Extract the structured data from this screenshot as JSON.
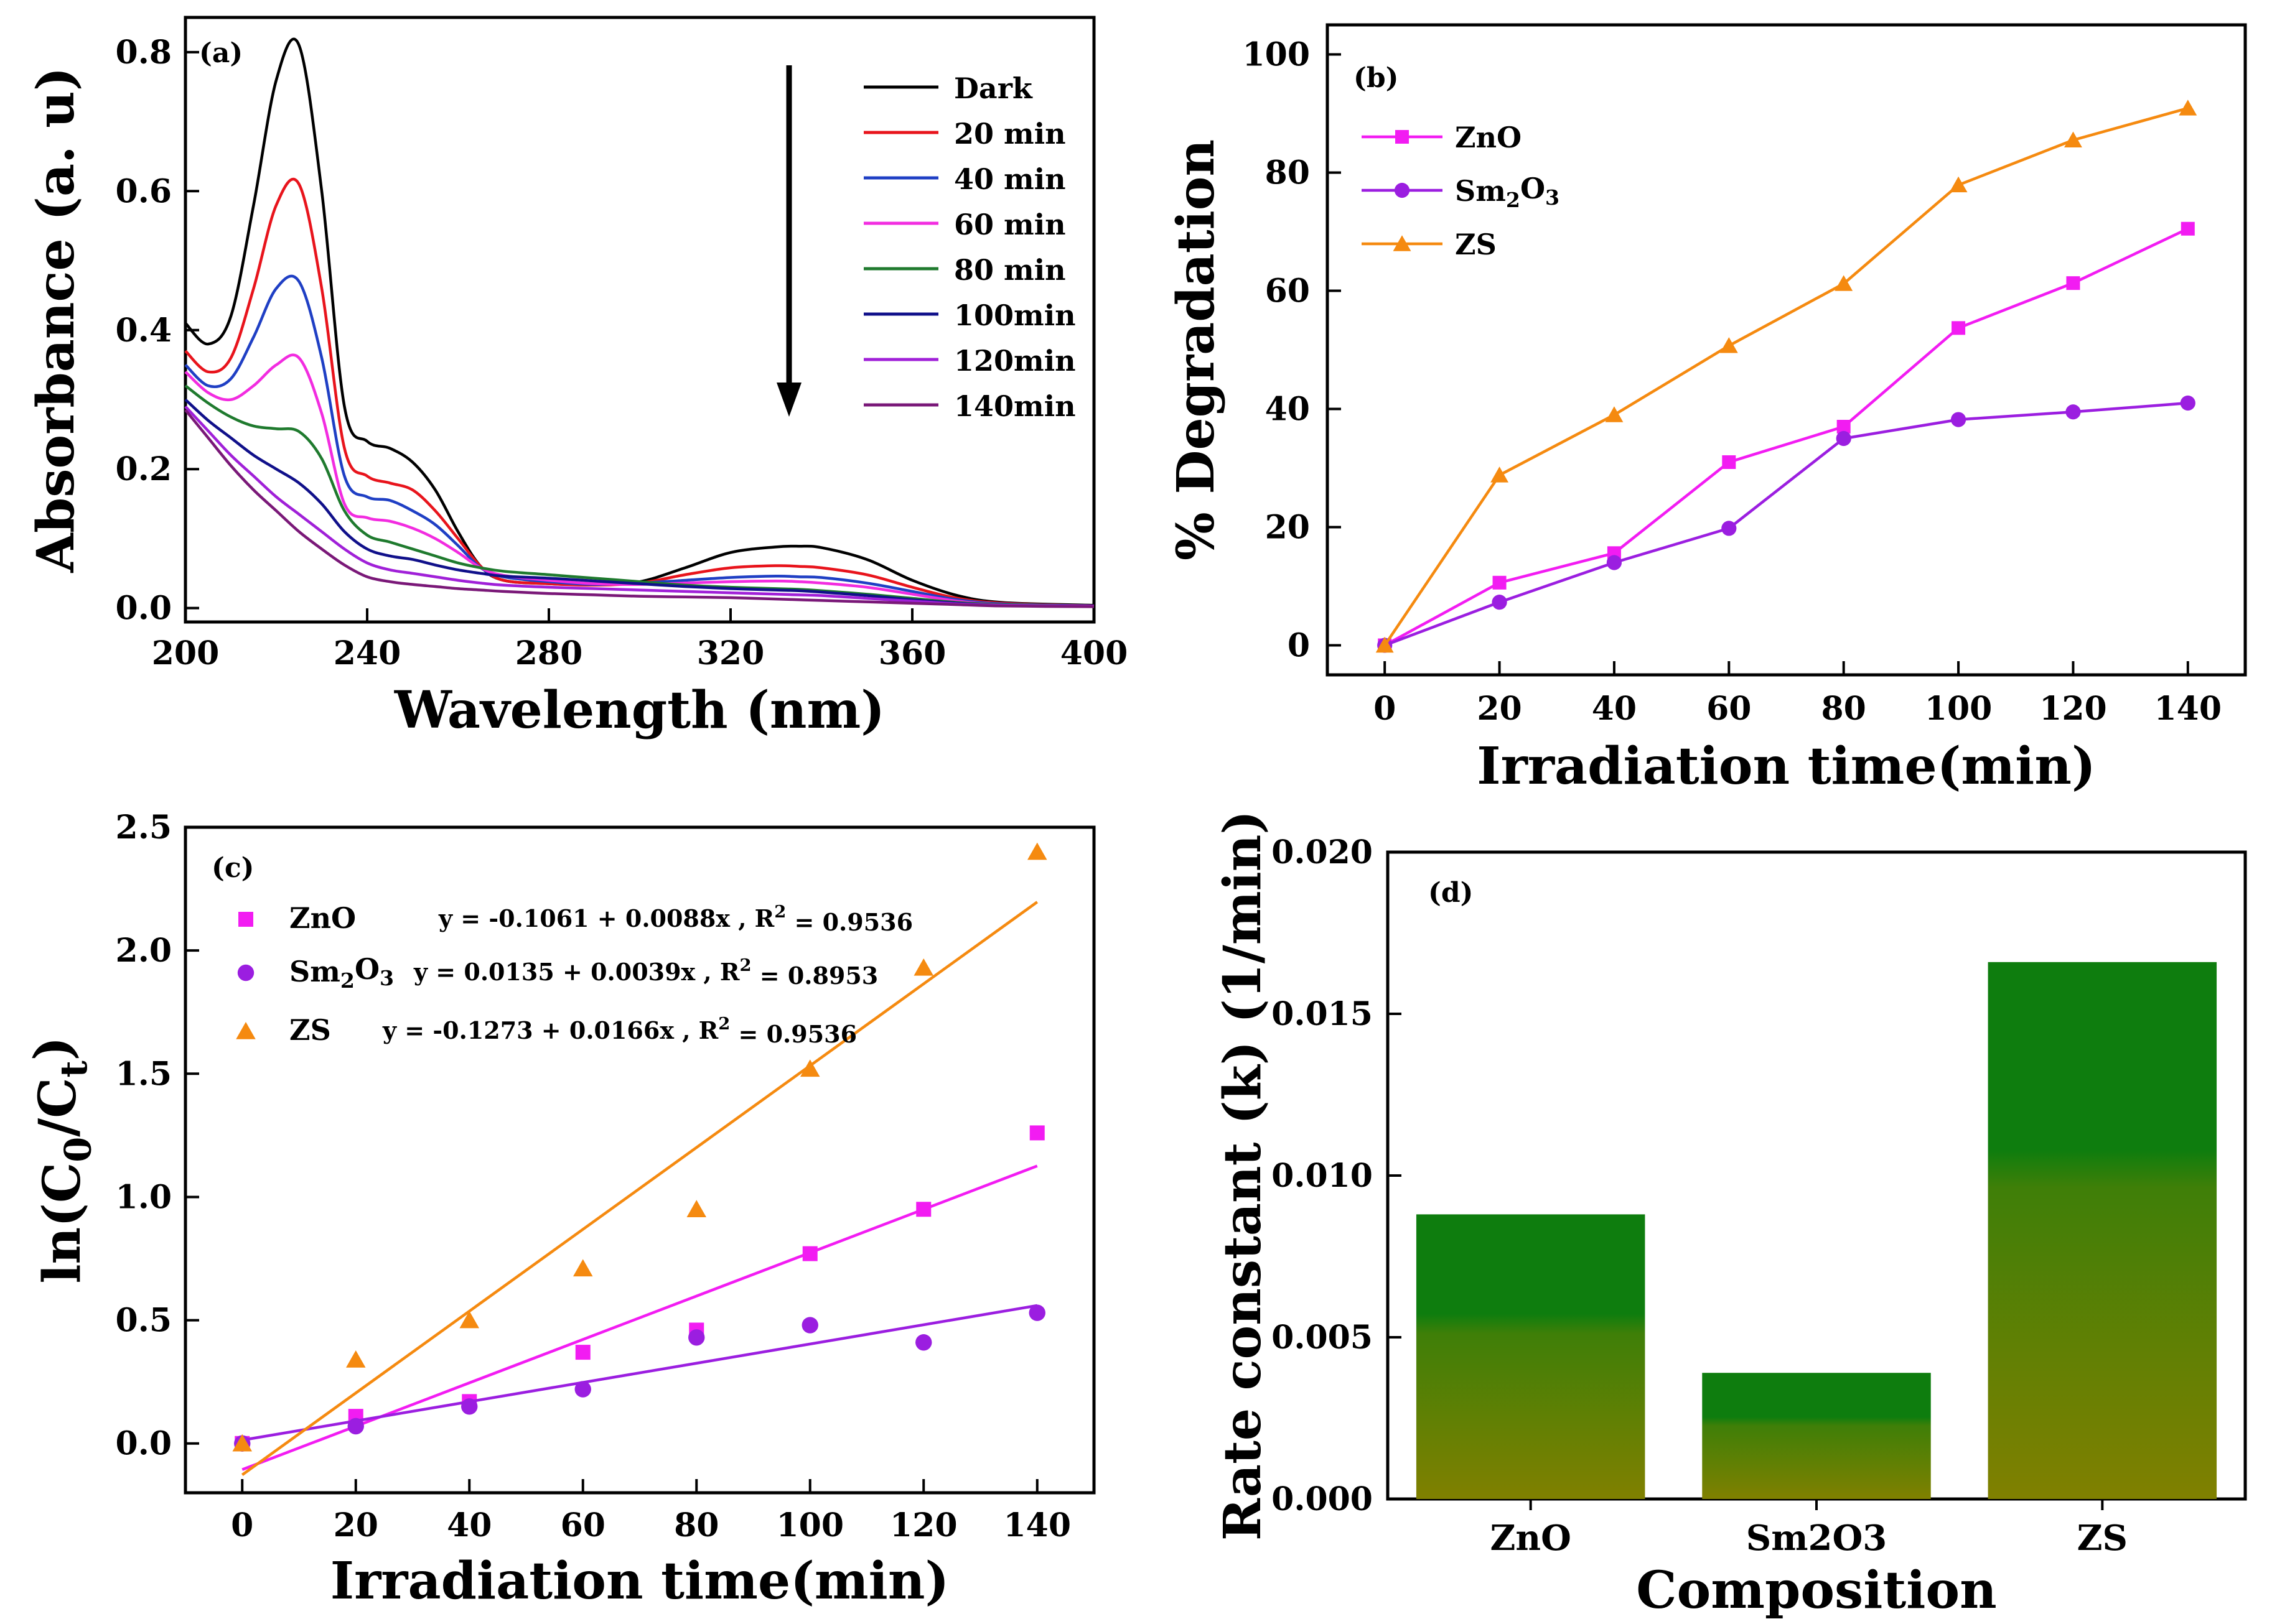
{
  "chart_data": [
    {
      "panel": "(a)",
      "type": "line",
      "xlabel": "Wavelength (nm)",
      "ylabel": "Absorbance (a. u)",
      "xlim": [
        200,
        400
      ],
      "ylim": [
        -0.02,
        0.85
      ],
      "xticks": [
        200,
        240,
        280,
        320,
        360,
        400
      ],
      "yticks": [
        0.0,
        0.2,
        0.4,
        0.6,
        0.8
      ],
      "x": [
        200,
        205,
        210,
        215,
        220,
        225,
        230,
        235,
        240,
        245,
        250,
        255,
        260,
        265,
        270,
        280,
        290,
        300,
        310,
        320,
        330,
        335,
        340,
        350,
        360,
        370,
        380,
        400
      ],
      "series": [
        {
          "name": "Dark",
          "color": "#000000",
          "values": [
            0.41,
            0.38,
            0.42,
            0.58,
            0.76,
            0.81,
            0.6,
            0.29,
            0.24,
            0.23,
            0.21,
            0.17,
            0.11,
            0.06,
            0.04,
            0.035,
            0.034,
            0.038,
            0.058,
            0.08,
            0.088,
            0.089,
            0.087,
            0.07,
            0.04,
            0.018,
            0.008,
            0.004
          ]
        },
        {
          "name": "20 min",
          "color": "#e8141c",
          "values": [
            0.37,
            0.34,
            0.36,
            0.46,
            0.58,
            0.61,
            0.46,
            0.23,
            0.19,
            0.18,
            0.17,
            0.14,
            0.1,
            0.06,
            0.04,
            0.035,
            0.033,
            0.036,
            0.048,
            0.058,
            0.061,
            0.06,
            0.058,
            0.048,
            0.03,
            0.014,
            0.007,
            0.003
          ]
        },
        {
          "name": "40 min",
          "color": "#1f3fc4",
          "values": [
            0.35,
            0.32,
            0.33,
            0.39,
            0.46,
            0.47,
            0.36,
            0.19,
            0.16,
            0.155,
            0.14,
            0.12,
            0.09,
            0.058,
            0.045,
            0.038,
            0.034,
            0.036,
            0.04,
            0.044,
            0.046,
            0.045,
            0.044,
            0.036,
            0.024,
            0.012,
            0.006,
            0.003
          ]
        },
        {
          "name": "60 min",
          "color": "#f22ce0",
          "values": [
            0.34,
            0.31,
            0.3,
            0.32,
            0.35,
            0.36,
            0.28,
            0.15,
            0.13,
            0.125,
            0.115,
            0.1,
            0.08,
            0.058,
            0.047,
            0.04,
            0.035,
            0.034,
            0.036,
            0.038,
            0.039,
            0.038,
            0.036,
            0.03,
            0.02,
            0.01,
            0.005,
            0.003
          ]
        },
        {
          "name": "80 min",
          "color": "#1f7a2e",
          "values": [
            0.32,
            0.295,
            0.275,
            0.262,
            0.258,
            0.254,
            0.215,
            0.14,
            0.105,
            0.095,
            0.085,
            0.075,
            0.065,
            0.058,
            0.053,
            0.048,
            0.043,
            0.038,
            0.033,
            0.03,
            0.028,
            0.027,
            0.025,
            0.02,
            0.014,
            0.008,
            0.005,
            0.003
          ]
        },
        {
          "name": "100min",
          "color": "#10108a",
          "values": [
            0.3,
            0.27,
            0.245,
            0.22,
            0.2,
            0.18,
            0.15,
            0.11,
            0.085,
            0.075,
            0.07,
            0.062,
            0.055,
            0.05,
            0.046,
            0.043,
            0.039,
            0.035,
            0.031,
            0.028,
            0.026,
            0.025,
            0.023,
            0.018,
            0.012,
            0.007,
            0.004,
            0.003
          ]
        },
        {
          "name": "120min",
          "color": "#a020d8",
          "values": [
            0.29,
            0.255,
            0.22,
            0.19,
            0.16,
            0.135,
            0.11,
            0.085,
            0.065,
            0.055,
            0.05,
            0.045,
            0.04,
            0.036,
            0.033,
            0.03,
            0.028,
            0.026,
            0.024,
            0.022,
            0.02,
            0.019,
            0.018,
            0.014,
            0.01,
            0.006,
            0.004,
            0.003
          ]
        },
        {
          "name": "140min",
          "color": "#7a1878",
          "values": [
            0.285,
            0.245,
            0.205,
            0.17,
            0.14,
            0.11,
            0.085,
            0.062,
            0.045,
            0.038,
            0.034,
            0.031,
            0.028,
            0.026,
            0.024,
            0.021,
            0.019,
            0.017,
            0.016,
            0.015,
            0.013,
            0.012,
            0.011,
            0.009,
            0.007,
            0.005,
            0.003,
            0.002
          ]
        }
      ],
      "annotation": "downward arrow: absorbance decreases with time"
    },
    {
      "panel": "(b)",
      "type": "line",
      "xlabel": "Irradiation time(min)",
      "ylabel": "% Degradation",
      "xlim": [
        -10,
        150
      ],
      "ylim": [
        -5,
        105
      ],
      "xticks": [
        0,
        20,
        40,
        60,
        80,
        100,
        120,
        140
      ],
      "yticks": [
        0,
        20,
        40,
        60,
        80,
        100
      ],
      "x": [
        0,
        20,
        40,
        60,
        80,
        100,
        120,
        140
      ],
      "series": [
        {
          "name": "ZnO",
          "color": "#f21cf2",
          "marker": "square",
          "values": [
            0,
            10.6,
            15.6,
            31,
            37,
            53.7,
            61.3,
            70.5
          ]
        },
        {
          "name": "Sm2O3",
          "color": "#9b1ee0",
          "marker": "circle",
          "values": [
            0,
            7.3,
            14,
            19.8,
            35,
            38.2,
            39.5,
            41
          ]
        },
        {
          "name": "ZS",
          "color": "#f58a10",
          "marker": "triangle",
          "values": [
            0,
            28.8,
            39,
            50.7,
            61.2,
            77.9,
            85.5,
            90.9
          ]
        }
      ]
    },
    {
      "panel": "(c)",
      "type": "scatter",
      "xlabel": "Irradiation time(min)",
      "ylabel": "ln(C0/Ct)",
      "xlim": [
        -10,
        150
      ],
      "ylim": [
        -0.2,
        2.5
      ],
      "xticks": [
        0,
        20,
        40,
        60,
        80,
        100,
        120,
        140
      ],
      "yticks": [
        0.0,
        0.5,
        1.0,
        1.5,
        2.0,
        2.5
      ],
      "x": [
        0,
        20,
        40,
        60,
        80,
        100,
        120,
        140
      ],
      "series": [
        {
          "name": "ZnO",
          "color": "#f21cf2",
          "marker": "square",
          "values": [
            0,
            0.11,
            0.17,
            0.37,
            0.46,
            0.77,
            0.95,
            1.26
          ],
          "fit": {
            "intercept": -0.1061,
            "slope": 0.0088
          },
          "equation": "y = -0.1061 + 0.0088x , R",
          "r2": "= 0.9536"
        },
        {
          "name": "Sm2O3",
          "color": "#9b1ee0",
          "marker": "circle",
          "values": [
            0,
            0.07,
            0.15,
            0.22,
            0.43,
            0.48,
            0.41,
            0.53
          ],
          "fit": {
            "intercept": 0.0135,
            "slope": 0.0039
          },
          "equation": "y = 0.0135 + 0.0039x , R",
          "r2": "= 0.8953"
        },
        {
          "name": "ZS",
          "color": "#f58a10",
          "marker": "triangle",
          "values": [
            0,
            0.34,
            0.5,
            0.71,
            0.95,
            1.52,
            1.93,
            2.4
          ],
          "fit": {
            "intercept": -0.1273,
            "slope": 0.0166
          },
          "equation": "y = -0.1273 + 0.0166x , R",
          "r2": "= 0.9536"
        }
      ]
    },
    {
      "panel": "(d)",
      "type": "bar",
      "xlabel": "Composition",
      "ylabel": "Rate constant (k) (1/min)",
      "ylim": [
        0,
        0.02
      ],
      "yticks": [
        "0.000",
        "0.005",
        "0.010",
        "0.015",
        "0.020"
      ],
      "categories": [
        "ZnO",
        "Sm2O3",
        "ZS"
      ],
      "values": [
        0.0088,
        0.0039,
        0.0166
      ],
      "bar_color_top": "#0e7d0e",
      "bar_color_bottom": "#808000"
    }
  ]
}
